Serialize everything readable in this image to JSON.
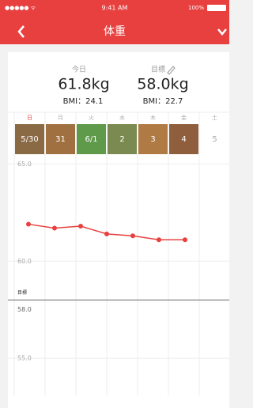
{
  "status_bar": {
    "signal": "●●●●● ᯤ",
    "time": "9:41 AM",
    "battery": "100%"
  },
  "nav": {
    "title": "体重"
  },
  "summary": {
    "today": {
      "label": "今日",
      "weight": "61.8kg",
      "bmi": "BMI：24.1"
    },
    "goal": {
      "label": "目標",
      "weight": "58.0kg",
      "bmi": "BMI：22.7"
    }
  },
  "days": [
    {
      "weekday": "日",
      "date": "5/30"
    },
    {
      "weekday": "月",
      "date": "31"
    },
    {
      "weekday": "火",
      "date": "6/1"
    },
    {
      "weekday": "水",
      "date": "2"
    },
    {
      "weekday": "木",
      "date": "3"
    },
    {
      "weekday": "金",
      "date": "4"
    },
    {
      "weekday": "土",
      "date": "5"
    }
  ],
  "chart_data": {
    "type": "line",
    "values": [
      61.9,
      61.7,
      61.8,
      61.4,
      61.3,
      61.1,
      61.1
    ],
    "color": "#e8403f",
    "ylim": [
      53.5,
      65.3
    ],
    "yticks": [
      {
        "value": 65,
        "label": "65.0"
      },
      {
        "value": 60,
        "label": "60.0"
      },
      {
        "value": 55,
        "label": "55.0"
      }
    ],
    "goal": {
      "label": "目標",
      "value": 58,
      "value_label": "58.0"
    },
    "grid": true
  }
}
